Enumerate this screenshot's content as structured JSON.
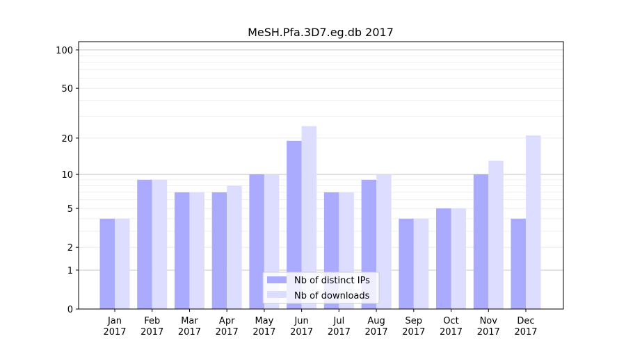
{
  "chart_data": {
    "type": "bar",
    "title": "MeSH.Pfa.3D7.eg.db 2017",
    "xlabel": "",
    "ylabel": "",
    "yscale": "log10(1+y)",
    "ylim": [
      0,
      116
    ],
    "yticks": [
      0,
      1,
      2,
      5,
      10,
      20,
      50,
      100
    ],
    "grid": true,
    "legend_position": "lower center",
    "categories": [
      [
        "Jan",
        "2017"
      ],
      [
        "Feb",
        "2017"
      ],
      [
        "Mar",
        "2017"
      ],
      [
        "Apr",
        "2017"
      ],
      [
        "May",
        "2017"
      ],
      [
        "Jun",
        "2017"
      ],
      [
        "Jul",
        "2017"
      ],
      [
        "Aug",
        "2017"
      ],
      [
        "Sep",
        "2017"
      ],
      [
        "Oct",
        "2017"
      ],
      [
        "Nov",
        "2017"
      ],
      [
        "Dec",
        "2017"
      ]
    ],
    "series": [
      {
        "name": "Nb of distinct IPs",
        "color": "#aaaaff",
        "values": [
          4,
          9,
          7,
          7,
          10,
          19,
          7,
          9,
          4,
          5,
          10,
          4
        ]
      },
      {
        "name": "Nb of downloads",
        "color": "#ddddff",
        "values": [
          4,
          9,
          7,
          8,
          10,
          25,
          7,
          10,
          4,
          5,
          13,
          21
        ]
      }
    ]
  }
}
